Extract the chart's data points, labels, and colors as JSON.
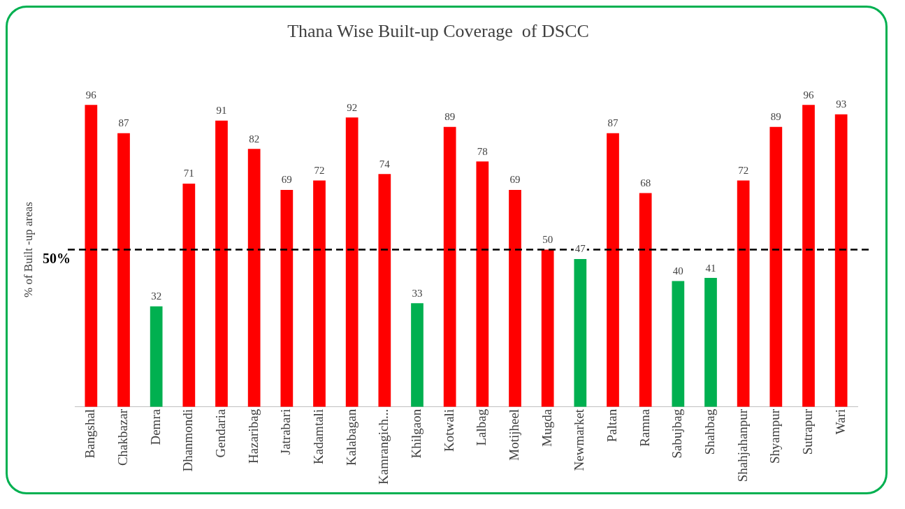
{
  "chart_data": {
    "type": "bar",
    "title": "Thana Wise Built-up Coverage  of DSCC",
    "ylabel": "% of Built -up areas",
    "categories": [
      "Bangshal",
      "Chakbazar",
      "Demra",
      "Dhanmondi",
      "Gendaria",
      "Hazaribag",
      "Jatrabari",
      "Kadamtali",
      "Kalabagan",
      "Kamrangich...",
      "Khilgaon",
      "Kotwali",
      "Lalbag",
      "Motijheel",
      "Mugda",
      "Newmarket",
      "Paltan",
      "Ramna",
      "Sabujbag",
      "Shahbag",
      "Shahjahanpur",
      "Shyampur",
      "Sutrapur",
      "Wari"
    ],
    "values": [
      96,
      87,
      32,
      71,
      91,
      82,
      69,
      72,
      92,
      74,
      33,
      89,
      78,
      69,
      50,
      47,
      87,
      68,
      40,
      41,
      72,
      89,
      96,
      93
    ],
    "colors": [
      "#ff0000",
      "#ff0000",
      "#00b050",
      "#ff0000",
      "#ff0000",
      "#ff0000",
      "#ff0000",
      "#ff0000",
      "#ff0000",
      "#ff0000",
      "#00b050",
      "#ff0000",
      "#ff0000",
      "#ff0000",
      "#ff0000",
      "#00b050",
      "#ff0000",
      "#ff0000",
      "#00b050",
      "#00b050",
      "#ff0000",
      "#ff0000",
      "#ff0000",
      "#ff0000"
    ],
    "tick_labels": "x",
    "data_labels": true,
    "grid": false,
    "legend": false,
    "ref_lines": [
      {
        "axis": "y",
        "value": 50,
        "label": "50%",
        "color": "#000000",
        "line_style": "dashed"
      }
    ]
  }
}
